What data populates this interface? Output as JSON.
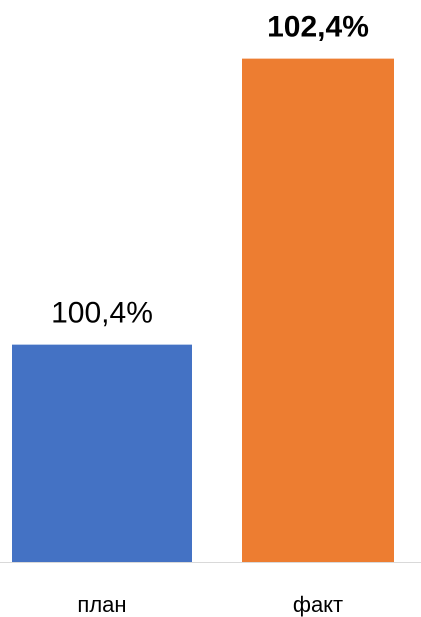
{
  "chart_data": {
    "type": "bar",
    "categories": [
      "план",
      "факт"
    ],
    "values": [
      100.4,
      102.4
    ],
    "value_labels": [
      "100,4%",
      "102,4%"
    ],
    "label_bold": [
      false,
      true
    ],
    "colors": [
      "#4472c4",
      "#ed7d31"
    ],
    "ylim": [
      98.88,
      102.81
    ]
  }
}
